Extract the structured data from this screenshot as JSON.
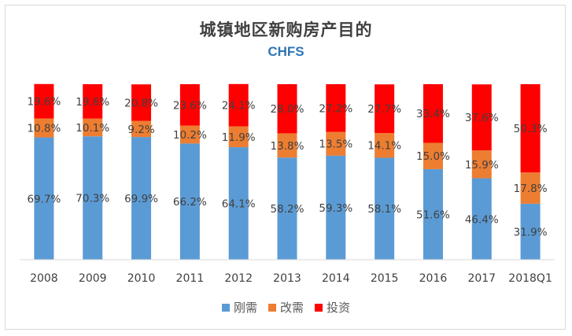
{
  "chart_data": {
    "type": "bar",
    "stacked": true,
    "title": "城镇地区新购房产目的",
    "subtitle": "CHFS",
    "categories": [
      "2008",
      "2009",
      "2010",
      "2011",
      "2012",
      "2013",
      "2014",
      "2015",
      "2016",
      "2017",
      "2018Q1"
    ],
    "series": [
      {
        "name": "刚需",
        "color": "#5b9bd5",
        "values": [
          69.7,
          70.3,
          69.9,
          66.2,
          64.1,
          58.2,
          59.3,
          58.1,
          51.6,
          46.4,
          31.9
        ],
        "labels": [
          "69.7%",
          "70.3%",
          "69.9%",
          "66.2%",
          "64.1%",
          "58.2%",
          "59.3%",
          "58.1%",
          "51.6%",
          "46.4%",
          "31.9%"
        ]
      },
      {
        "name": "改需",
        "color": "#ed7d31",
        "values": [
          10.8,
          10.1,
          9.2,
          10.2,
          11.9,
          13.8,
          13.5,
          14.1,
          15.0,
          15.9,
          17.8
        ],
        "labels": [
          "10.8%",
          "10.1%",
          "9.2%",
          "10.2%",
          "11.9%",
          "13.8%",
          "13.5%",
          "14.1%",
          "15.0%",
          "15.9%",
          "17.8%"
        ]
      },
      {
        "name": "投资",
        "color": "#ff0000",
        "values": [
          19.6,
          19.6,
          20.8,
          23.6,
          24.1,
          28.0,
          27.2,
          27.7,
          33.4,
          37.6,
          50.3
        ],
        "labels": [
          "19.6%",
          "19.6%",
          "20.8%",
          "23.6%",
          "24.1%",
          "28.0%",
          "27.2%",
          "27.7%",
          "33.4%",
          "37.6%",
          "50.3%"
        ]
      }
    ],
    "ylim": [
      0,
      100
    ],
    "grid": false,
    "legend_position": "bottom"
  }
}
